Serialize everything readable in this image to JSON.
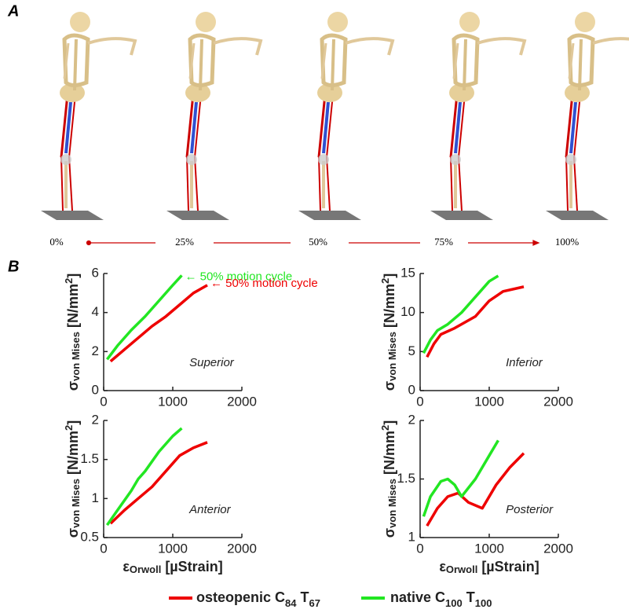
{
  "panel_a": {
    "label": "A",
    "phases": [
      "0%",
      "25%",
      "50%",
      "75%",
      "100%"
    ]
  },
  "panel_b": {
    "label": "B"
  },
  "chart_data": [
    {
      "type": "line",
      "label": "Superior",
      "ylabel": [
        {
          "text": "σ"
        },
        {
          "text": "von Mises",
          "shift": "sub"
        },
        {
          "text": " [N/mm"
        },
        {
          "text": "2",
          "shift": "sup"
        },
        {
          "text": "]"
        }
      ],
      "xlim": [
        0,
        2000
      ],
      "xticks": [
        0,
        1000,
        2000
      ],
      "ylim": [
        0,
        6
      ],
      "yticks": [
        0,
        2,
        4,
        6
      ],
      "annotations": [
        "← 50% motion cycle",
        "← 50% motion cycle"
      ],
      "series": [
        {
          "name": "osteopenic C84 T67",
          "color": "#e00",
          "x": [
            100,
            300,
            500,
            700,
            900,
            1100,
            1300,
            1500
          ],
          "values": [
            1.5,
            2.1,
            2.7,
            3.3,
            3.8,
            4.4,
            5.0,
            5.4
          ]
        },
        {
          "name": "native C100 T100",
          "color": "#22e622",
          "x": [
            50,
            200,
            400,
            600,
            800,
            1000,
            1130
          ],
          "values": [
            1.6,
            2.3,
            3.1,
            3.8,
            4.6,
            5.4,
            5.9
          ]
        }
      ]
    },
    {
      "type": "line",
      "label": "Inferior",
      "ylabel": [
        {
          "text": "σ"
        },
        {
          "text": "von Mises",
          "shift": "sub"
        },
        {
          "text": " [N/mm"
        },
        {
          "text": "2",
          "shift": "sup"
        },
        {
          "text": "]"
        }
      ],
      "xlim": [
        0,
        2000
      ],
      "xticks": [
        0,
        1000,
        2000
      ],
      "ylim": [
        0,
        15
      ],
      "yticks": [
        0,
        5,
        10,
        15
      ],
      "series": [
        {
          "name": "osteopenic C84 T67",
          "color": "#e00",
          "x": [
            100,
            200,
            300,
            500,
            800,
            1000,
            1200,
            1500
          ],
          "values": [
            4.3,
            6,
            7.2,
            8,
            9.5,
            11.5,
            12.7,
            13.3
          ]
        },
        {
          "name": "native C100 T100",
          "color": "#22e622",
          "x": [
            50,
            150,
            250,
            400,
            600,
            800,
            1000,
            1130
          ],
          "values": [
            4.8,
            6.5,
            7.7,
            8.5,
            10,
            12,
            14,
            14.7
          ]
        }
      ]
    },
    {
      "type": "line",
      "label": "Anterior",
      "ylabel": [
        {
          "text": "σ"
        },
        {
          "text": "von Mises",
          "shift": "sub"
        },
        {
          "text": " [N/mm"
        },
        {
          "text": "2",
          "shift": "sup"
        },
        {
          "text": "]"
        }
      ],
      "xlabel": [
        {
          "text": "ε"
        },
        {
          "text": "Orwoll",
          "shift": "sub"
        },
        {
          "text": " [µStrain]"
        }
      ],
      "xlim": [
        0,
        2000
      ],
      "xticks": [
        0,
        1000,
        2000
      ],
      "ylim": [
        0.5,
        2
      ],
      "yticks": [
        0.5,
        1,
        1.5,
        2
      ],
      "series": [
        {
          "name": "osteopenic C84 T67",
          "color": "#e00",
          "x": [
            100,
            300,
            500,
            700,
            900,
            1100,
            1300,
            1500
          ],
          "values": [
            0.68,
            0.85,
            1.0,
            1.15,
            1.35,
            1.55,
            1.65,
            1.72
          ]
        },
        {
          "name": "native C100 T100",
          "color": "#22e622",
          "x": [
            50,
            200,
            400,
            500,
            600,
            800,
            1000,
            1130
          ],
          "values": [
            0.66,
            0.85,
            1.1,
            1.25,
            1.35,
            1.6,
            1.8,
            1.9
          ]
        }
      ]
    },
    {
      "type": "line",
      "label": "Posterior",
      "ylabel": [
        {
          "text": "σ"
        },
        {
          "text": "von Mises",
          "shift": "sub"
        },
        {
          "text": " [N/mm"
        },
        {
          "text": "2",
          "shift": "sup"
        },
        {
          "text": "]"
        }
      ],
      "xlabel": [
        {
          "text": "ε"
        },
        {
          "text": "Orwoll",
          "shift": "sub"
        },
        {
          "text": " [µStrain]"
        }
      ],
      "xlim": [
        0,
        2000
      ],
      "xticks": [
        0,
        1000,
        2000
      ],
      "ylim": [
        1,
        2
      ],
      "yticks": [
        1,
        1.5,
        2
      ],
      "series": [
        {
          "name": "osteopenic C84 T67",
          "color": "#e00",
          "x": [
            100,
            250,
            400,
            550,
            700,
            900,
            1100,
            1300,
            1500
          ],
          "values": [
            1.1,
            1.25,
            1.35,
            1.38,
            1.3,
            1.25,
            1.45,
            1.6,
            1.72
          ]
        },
        {
          "name": "native C100 T100",
          "color": "#22e622",
          "x": [
            50,
            150,
            300,
            400,
            500,
            600,
            800,
            1000,
            1130
          ],
          "values": [
            1.18,
            1.35,
            1.48,
            1.5,
            1.45,
            1.35,
            1.5,
            1.7,
            1.83
          ]
        }
      ]
    }
  ]
}
